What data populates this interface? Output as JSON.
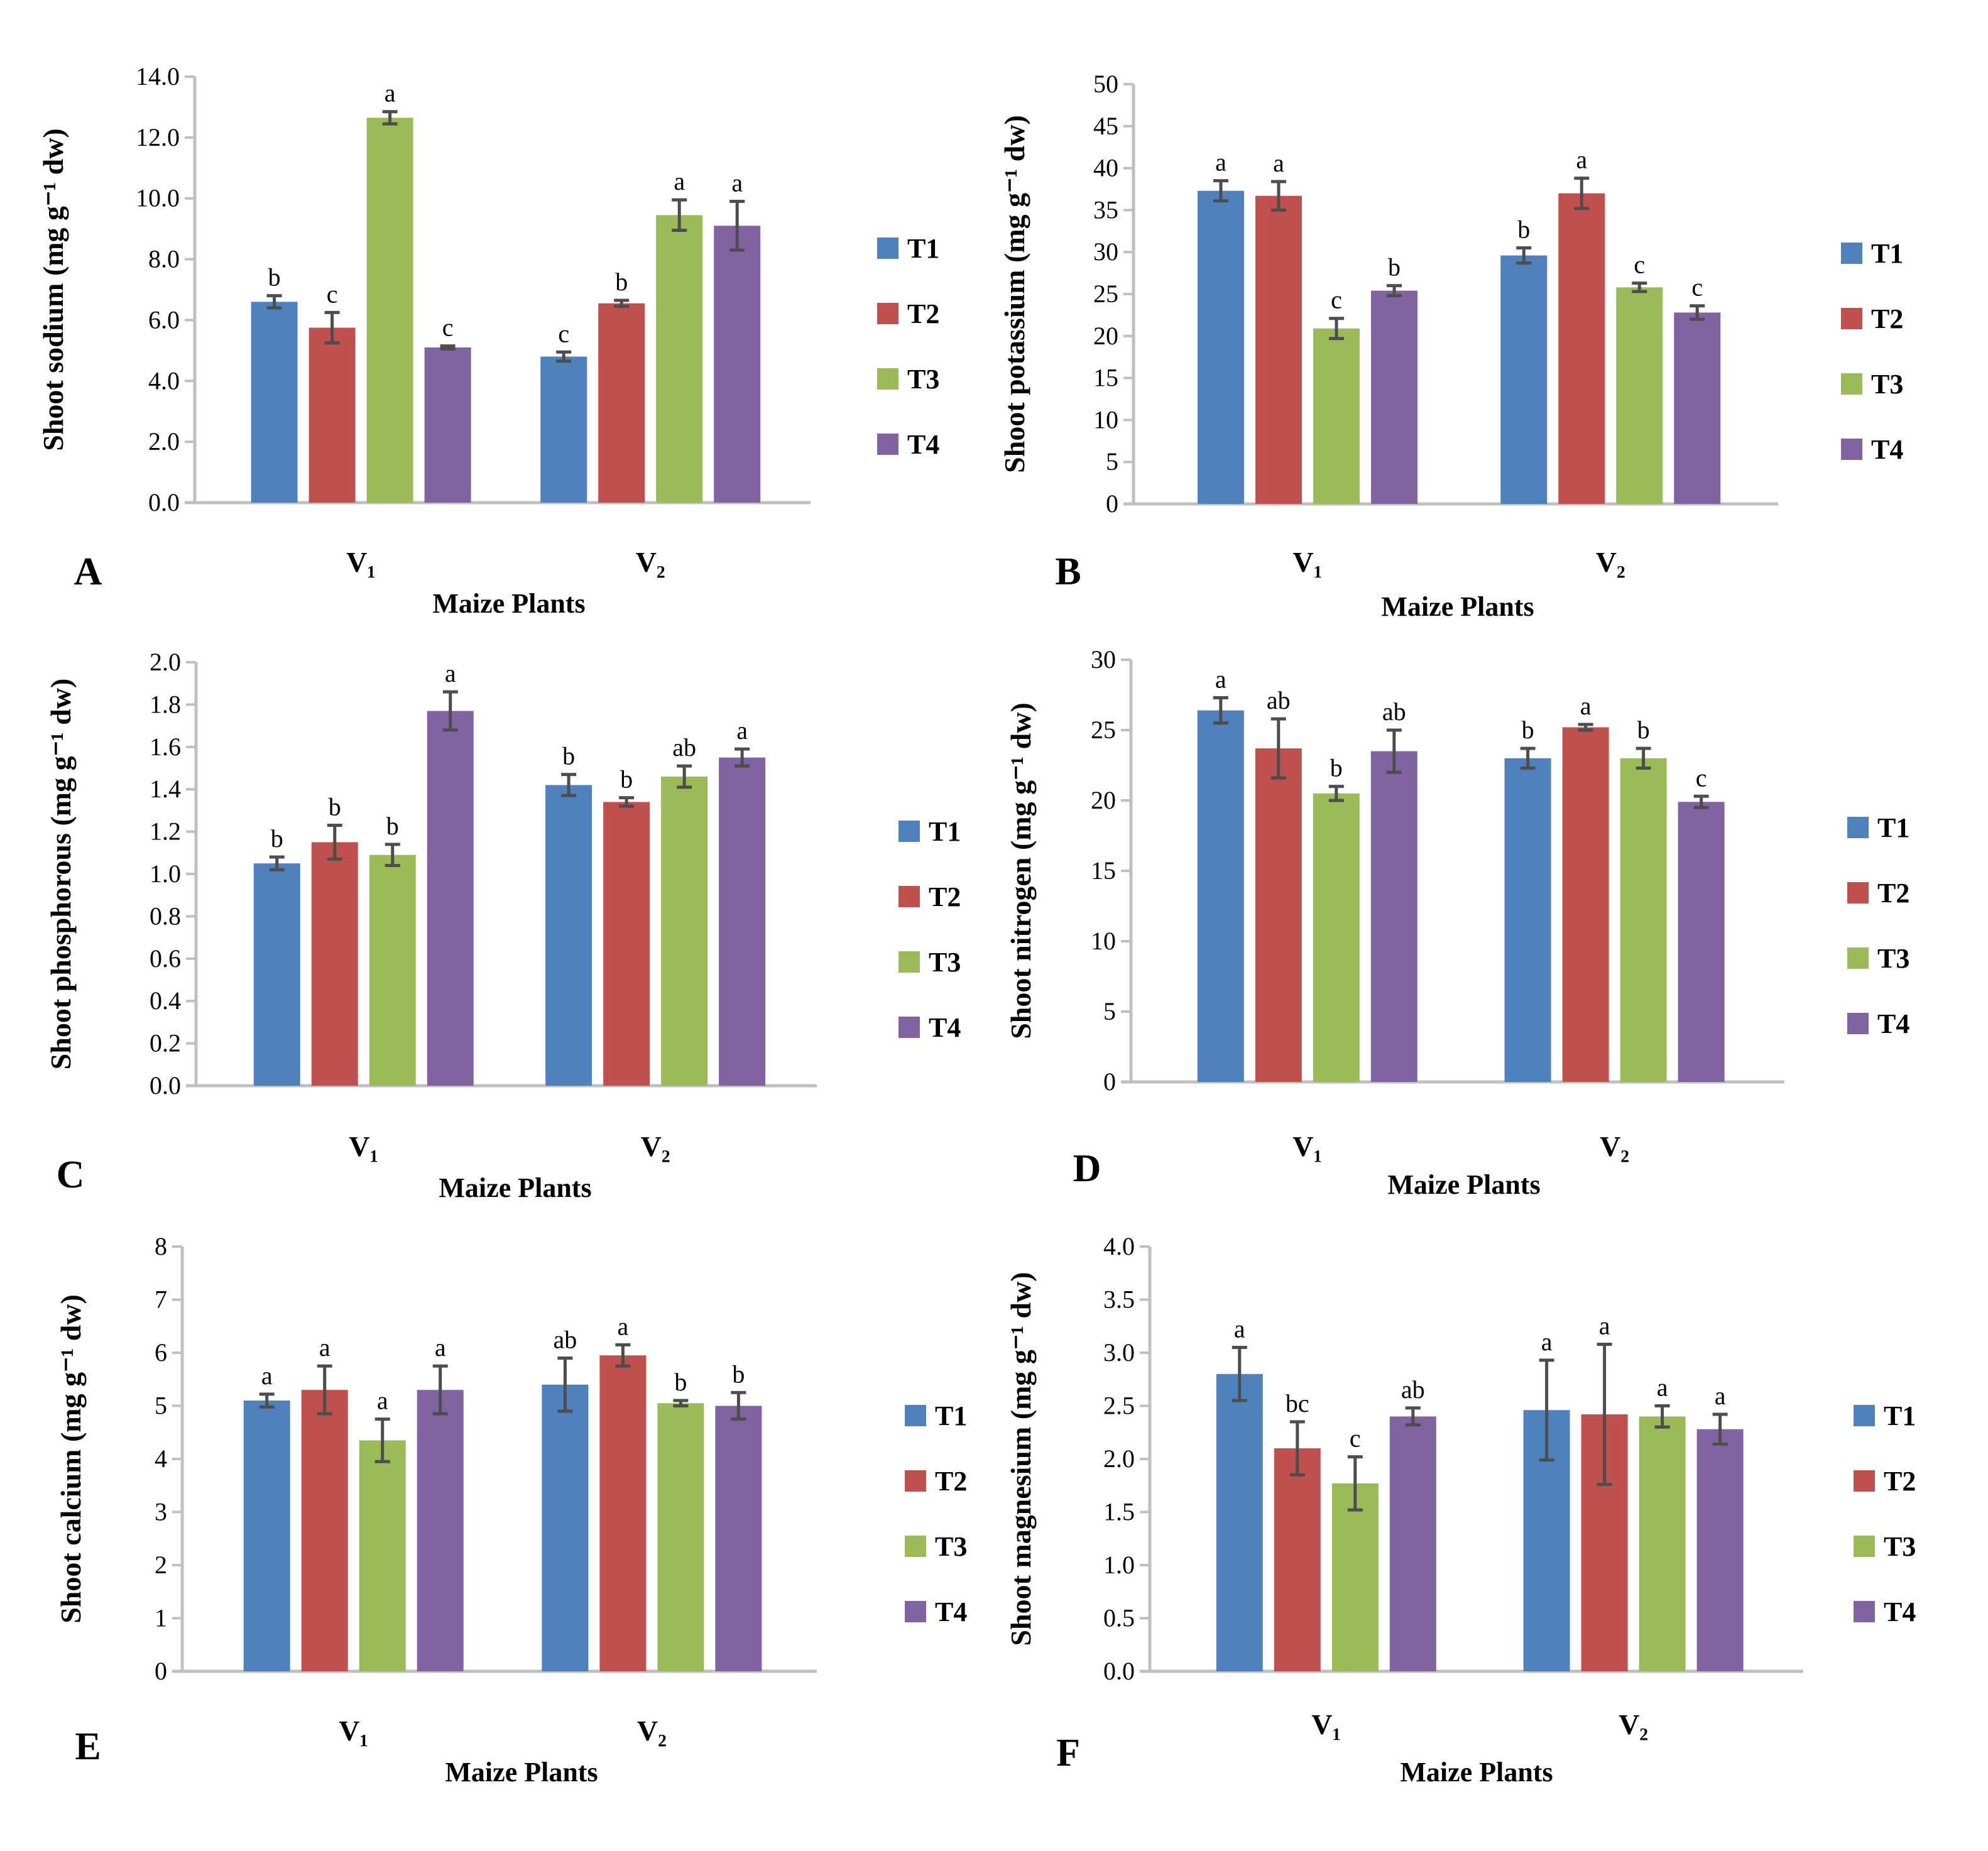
{
  "colors": {
    "T1": "#4f81bd",
    "T2": "#c0504d",
    "T3": "#9bbb59",
    "T4": "#8064a2",
    "axis": "#bfbfbf",
    "error": "#4d4d4d"
  },
  "chart_data": [
    {
      "type": "bar",
      "panel": "A",
      "ylabel": "Shoot sodium (mg g⁻¹ dw)",
      "xlabel": "Maize Plants",
      "categories": [
        "V₁",
        "V₂"
      ],
      "ylim": [
        0,
        14
      ],
      "ystep": 2,
      "decimals": 1,
      "legend": "right",
      "series": [
        {
          "name": "T1",
          "values": [
            6.6,
            4.8
          ],
          "errors": [
            0.2,
            0.15
          ],
          "letters": [
            "b",
            "c"
          ]
        },
        {
          "name": "T2",
          "values": [
            5.75,
            6.55
          ],
          "errors": [
            0.5,
            0.1
          ],
          "letters": [
            "c",
            "b"
          ]
        },
        {
          "name": "T3",
          "values": [
            12.65,
            9.45
          ],
          "errors": [
            0.2,
            0.5
          ],
          "letters": [
            "a",
            "a"
          ]
        },
        {
          "name": "T4",
          "values": [
            5.1,
            9.1
          ],
          "errors": [
            0.05,
            0.8
          ],
          "letters": [
            "c",
            "a"
          ]
        }
      ]
    },
    {
      "type": "bar",
      "panel": "B",
      "ylabel": "Shoot potassium (mg g⁻¹ dw)",
      "xlabel": "Maize Plants",
      "categories": [
        "V₁",
        "V₂"
      ],
      "ylim": [
        0,
        50
      ],
      "ystep": 5,
      "decimals": 0,
      "legend": "right",
      "series": [
        {
          "name": "T1",
          "values": [
            37.3,
            29.6
          ],
          "errors": [
            1.2,
            0.9
          ],
          "letters": [
            "a",
            "b"
          ]
        },
        {
          "name": "T2",
          "values": [
            36.7,
            37.0
          ],
          "errors": [
            1.7,
            1.8
          ],
          "letters": [
            "a",
            "a"
          ]
        },
        {
          "name": "T3",
          "values": [
            20.9,
            25.8
          ],
          "errors": [
            1.2,
            0.5
          ],
          "letters": [
            "c",
            "c"
          ]
        },
        {
          "name": "T4",
          "values": [
            25.4,
            22.8
          ],
          "errors": [
            0.6,
            0.8
          ],
          "letters": [
            "b",
            "c"
          ]
        }
      ]
    },
    {
      "type": "bar",
      "panel": "C",
      "ylabel": "Shoot phosphorous (mg g⁻¹ dw)",
      "xlabel": "Maize Plants",
      "categories": [
        "V₁",
        "V₂"
      ],
      "ylim": [
        0,
        2
      ],
      "ystep": 0.2,
      "decimals": 1,
      "legend": "right",
      "series": [
        {
          "name": "T1",
          "values": [
            1.05,
            1.42
          ],
          "errors": [
            0.03,
            0.05
          ],
          "letters": [
            "b",
            "b"
          ]
        },
        {
          "name": "T2",
          "values": [
            1.15,
            1.34
          ],
          "errors": [
            0.08,
            0.02
          ],
          "letters": [
            "b",
            "b"
          ]
        },
        {
          "name": "T3",
          "values": [
            1.09,
            1.46
          ],
          "errors": [
            0.05,
            0.05
          ],
          "letters": [
            "b",
            "ab"
          ]
        },
        {
          "name": "T4",
          "values": [
            1.77,
            1.55
          ],
          "errors": [
            0.09,
            0.04
          ],
          "letters": [
            "a",
            "a"
          ]
        }
      ]
    },
    {
      "type": "bar",
      "panel": "D",
      "ylabel": "Shoot nitrogen (mg g⁻¹ dw)",
      "xlabel": "Maize Plants",
      "categories": [
        "V₁",
        "V₂"
      ],
      "ylim": [
        0,
        30
      ],
      "ystep": 5,
      "decimals": 0,
      "legend": "right",
      "series": [
        {
          "name": "T1",
          "values": [
            26.4,
            23.0
          ],
          "errors": [
            0.9,
            0.7
          ],
          "letters": [
            "a",
            "b"
          ]
        },
        {
          "name": "T2",
          "values": [
            23.7,
            25.2
          ],
          "errors": [
            2.1,
            0.2
          ],
          "letters": [
            "ab",
            "a"
          ]
        },
        {
          "name": "T3",
          "values": [
            20.5,
            23.0
          ],
          "errors": [
            0.5,
            0.7
          ],
          "letters": [
            "b",
            "b"
          ]
        },
        {
          "name": "T4",
          "values": [
            23.5,
            19.9
          ],
          "errors": [
            1.5,
            0.4
          ],
          "letters": [
            "ab",
            "c"
          ]
        }
      ]
    },
    {
      "type": "bar",
      "panel": "E",
      "ylabel": "Shoot calcium (mg g⁻¹ dw)",
      "xlabel": "Maize Plants",
      "categories": [
        "V₁",
        "V₂"
      ],
      "ylim": [
        0,
        8
      ],
      "ystep": 1,
      "decimals": 0,
      "legend": "right",
      "series": [
        {
          "name": "T1",
          "values": [
            5.1,
            5.4
          ],
          "errors": [
            0.12,
            0.5
          ],
          "letters": [
            "a",
            "ab"
          ]
        },
        {
          "name": "T2",
          "values": [
            5.3,
            5.95
          ],
          "errors": [
            0.45,
            0.2
          ],
          "letters": [
            "a",
            "a"
          ]
        },
        {
          "name": "T3",
          "values": [
            4.35,
            5.05
          ],
          "errors": [
            0.4,
            0.05
          ],
          "letters": [
            "a",
            "b"
          ]
        },
        {
          "name": "T4",
          "values": [
            5.3,
            5.0
          ],
          "errors": [
            0.45,
            0.25
          ],
          "letters": [
            "a",
            "b"
          ]
        }
      ]
    },
    {
      "type": "bar",
      "panel": "F",
      "ylabel": "Shoot magnesium (mg g⁻¹ dw)",
      "xlabel": "Maize Plants",
      "categories": [
        "V₁",
        "V₂"
      ],
      "ylim": [
        0,
        4
      ],
      "ystep": 0.5,
      "decimals": 1,
      "legend": "right",
      "series": [
        {
          "name": "T1",
          "values": [
            2.8,
            2.46
          ],
          "errors": [
            0.25,
            0.47
          ],
          "letters": [
            "a",
            "a"
          ]
        },
        {
          "name": "T2",
          "values": [
            2.1,
            2.42
          ],
          "errors": [
            0.25,
            0.66
          ],
          "letters": [
            "bc",
            "a"
          ]
        },
        {
          "name": "T3",
          "values": [
            1.77,
            2.4
          ],
          "errors": [
            0.25,
            0.1
          ],
          "letters": [
            "c",
            "a"
          ]
        },
        {
          "name": "T4",
          "values": [
            2.4,
            2.28
          ],
          "errors": [
            0.08,
            0.14
          ],
          "letters": [
            "ab",
            "a"
          ]
        }
      ]
    }
  ]
}
